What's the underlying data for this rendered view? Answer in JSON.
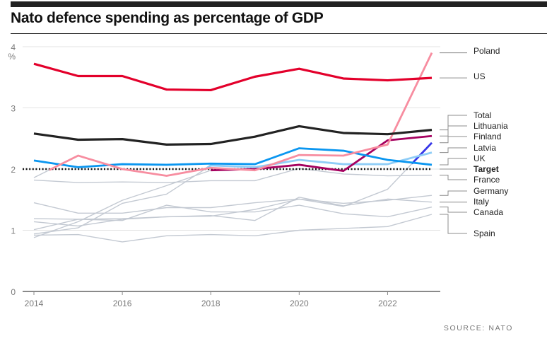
{
  "header": {
    "title": "Nato defence spending as percentage of GDP"
  },
  "footer": {
    "source": "SOURCE: NATO"
  },
  "chart_data": {
    "type": "line",
    "title": "Nato defence spending as percentage of GDP",
    "xlabel": "",
    "ylabel": "%",
    "x": [
      2014,
      2015,
      2016,
      2017,
      2018,
      2019,
      2020,
      2021,
      2022,
      2023
    ],
    "xlim": [
      2014,
      2023
    ],
    "ylim": [
      0,
      4
    ],
    "x_ticks": [
      2014,
      2016,
      2018,
      2020,
      2022
    ],
    "x_tick_labels": [
      "2014",
      "2016",
      "2018",
      "2020",
      "2022"
    ],
    "y_ticks": [
      0,
      1,
      2,
      3,
      4
    ],
    "y_tick_labels": [
      "0",
      "1",
      "2",
      "3",
      "4"
    ],
    "y_unit_label": "%",
    "grid": true,
    "legend": "right (direct labels)",
    "target": {
      "name": "Target",
      "value": 2,
      "style": "dotted",
      "color": "#111111"
    },
    "series": [
      {
        "name": "Spain",
        "color": "#c3c9d2",
        "highlight_from": null,
        "values": [
          0.92,
          0.93,
          0.81,
          0.91,
          0.93,
          0.91,
          1.0,
          1.03,
          1.06,
          1.26
        ]
      },
      {
        "name": "Canada",
        "color": "#c3c9d2",
        "highlight_from": null,
        "values": [
          1.01,
          1.18,
          1.16,
          1.41,
          1.3,
          1.3,
          1.41,
          1.27,
          1.22,
          1.38
        ]
      },
      {
        "name": "Italy",
        "color": "#c3c9d2",
        "highlight_from": null,
        "values": [
          1.14,
          1.07,
          1.18,
          1.22,
          1.24,
          1.16,
          1.54,
          1.4,
          1.51,
          1.46
        ]
      },
      {
        "name": "Germany",
        "color": "#c3c9d2",
        "highlight_from": null,
        "values": [
          1.19,
          1.18,
          1.19,
          1.22,
          1.23,
          1.34,
          1.51,
          1.44,
          1.49,
          1.57
        ]
      },
      {
        "name": "France",
        "color": "#c3c9d2",
        "highlight_from": null,
        "values": [
          1.82,
          1.78,
          1.79,
          1.78,
          1.81,
          1.81,
          2.01,
          1.92,
          1.89,
          1.9
        ]
      },
      {
        "name": "Finland",
        "color": "#3636e8",
        "highlight_from": 2022.55,
        "values": [
          1.45,
          1.28,
          1.28,
          1.37,
          1.37,
          1.45,
          1.51,
          1.39,
          1.67,
          2.43
        ]
      },
      {
        "name": "Latvia",
        "color": "#8fcdf7",
        "highlight_from": 2017.9,
        "values": [
          0.94,
          1.04,
          1.44,
          1.59,
          2.06,
          2.03,
          2.15,
          2.08,
          2.08,
          2.27
        ]
      },
      {
        "name": "Lithuania",
        "color": "#a5005f",
        "highlight_from": 2018,
        "values": [
          0.88,
          1.14,
          1.49,
          1.73,
          1.98,
          2.0,
          2.07,
          1.97,
          2.47,
          2.54
        ]
      },
      {
        "name": "UK",
        "color": "#0a96f0",
        "highlight_from": 2014,
        "values": [
          2.14,
          2.03,
          2.08,
          2.07,
          2.09,
          2.08,
          2.34,
          2.3,
          2.15,
          2.07
        ]
      },
      {
        "name": "Poland",
        "color": "#f78da0",
        "highlight_from": 2014.35,
        "values": [
          1.86,
          2.22,
          2.0,
          1.89,
          2.02,
          1.98,
          2.23,
          2.22,
          2.4,
          3.9
        ]
      },
      {
        "name": "Total",
        "color": "#222222",
        "highlight_from": 2014,
        "values": [
          2.58,
          2.48,
          2.49,
          2.4,
          2.41,
          2.53,
          2.7,
          2.59,
          2.57,
          2.64
        ]
      },
      {
        "name": "US",
        "color": "#e3002b",
        "highlight_from": 2014,
        "values": [
          3.72,
          3.52,
          3.52,
          3.3,
          3.29,
          3.51,
          3.64,
          3.48,
          3.45,
          3.49
        ]
      }
    ],
    "labels": [
      {
        "name": "Poland",
        "bold": false
      },
      {
        "name": "US",
        "bold": false
      },
      {
        "name": "Total",
        "bold": false
      },
      {
        "name": "Lithuania",
        "bold": false
      },
      {
        "name": "Finland",
        "bold": false
      },
      {
        "name": "Latvia",
        "bold": false
      },
      {
        "name": "UK",
        "bold": false
      },
      {
        "name": "Target",
        "bold": true
      },
      {
        "name": "France",
        "bold": false
      },
      {
        "name": "Germany",
        "bold": false
      },
      {
        "name": "Italy",
        "bold": false
      },
      {
        "name": "Canada",
        "bold": false
      },
      {
        "name": "Spain",
        "bold": false
      }
    ]
  }
}
